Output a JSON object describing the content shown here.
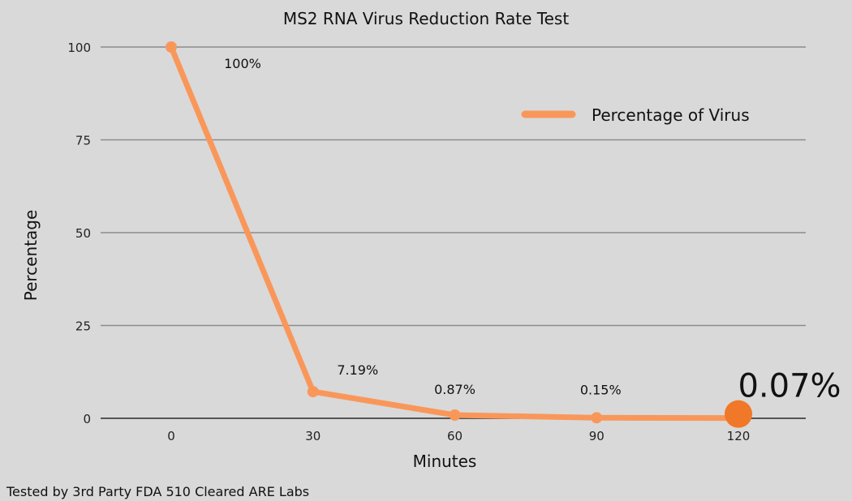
{
  "chart_data": {
    "type": "line",
    "title": "MS2 RNA Virus Reduction Rate Test",
    "xlabel": "Minutes",
    "ylabel": "Percentage",
    "x": [
      0,
      30,
      60,
      90,
      120
    ],
    "x_tick_labels": [
      "0",
      "30",
      "60",
      "90",
      "120"
    ],
    "y_tick_labels": [
      "0",
      "25",
      "50",
      "75",
      "100"
    ],
    "y_ticks": [
      0,
      25,
      50,
      75,
      100
    ],
    "ylim": [
      0,
      100
    ],
    "grid": true,
    "legend_position": "top-right",
    "series": [
      {
        "name": "Percentage of Virus",
        "values": [
          100,
          7.19,
          0.87,
          0.15,
          0.07
        ],
        "data_labels": [
          "100%",
          "7.19%",
          "0.87%",
          "0.15%",
          "0.07%"
        ],
        "color": "#f9975a",
        "highlight_color": "#f07828"
      }
    ],
    "footnote": "Tested by 3rd Party FDA 510 Cleared ARE Labs"
  }
}
